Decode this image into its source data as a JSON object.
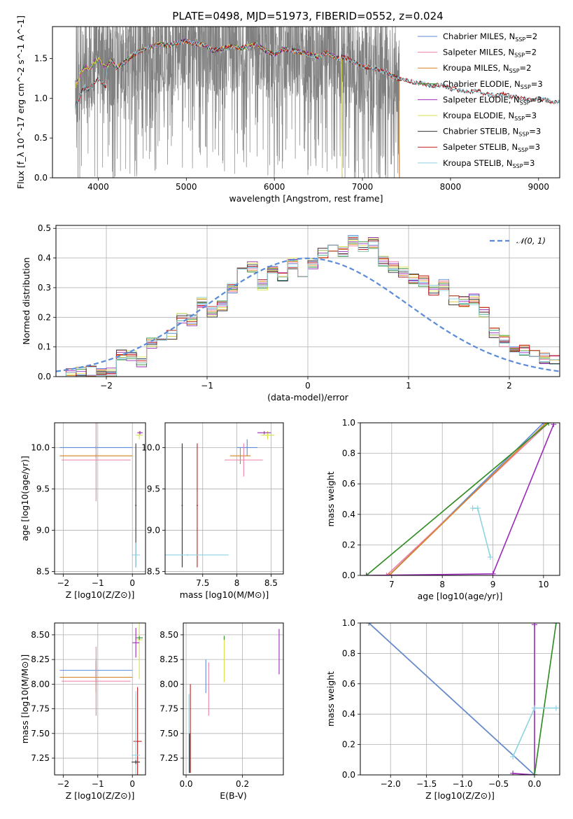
{
  "title": "PLATE=0498, MJD=51973, FIBERID=0552, z=0.024",
  "colors": {
    "Chabrier MILES": "#5b8bd9",
    "Salpeter MILES": "#ee7fa5",
    "Kroupa MILES": "#d4821e",
    "Chabrier ELODIE": "#2e8b2e",
    "Salpeter ELODIE": "#9a2ab8",
    "Kroupa ELODIE": "#d8e048",
    "Chabrier STELIB": "#333333",
    "Salpeter STELIB": "#c11b1b",
    "Kroupa STELIB": "#8fd3e0",
    "data": "#808080",
    "normal": "#5b8bd9"
  },
  "chart_data": [
    {
      "id": "spectrum",
      "type": "line",
      "title": "PLATE=0498, MJD=51973, FIBERID=0552, z=0.024",
      "xlabel": "wavelength [Angstrom, rest frame]",
      "ylabel": "Flux [f_λ 10^-17 erg cm^-2 s^-1 A^-1]",
      "xlim": [
        3480,
        9240
      ],
      "ylim": [
        0,
        1.9
      ],
      "xticks": [
        4000,
        5000,
        6000,
        7000,
        8000,
        9000
      ],
      "yticks": [
        0.0,
        0.5,
        1.0,
        1.5
      ],
      "legend_position": "top-right",
      "legend": [
        {
          "name": "Chabrier MILES",
          "sub": "SSP",
          "n": "=2"
        },
        {
          "name": "Salpeter MILES",
          "sub": "SSP",
          "n": "=2"
        },
        {
          "name": "Kroupa MILES",
          "sub": "SSP",
          "n": "=2"
        },
        {
          "name": "Chabrier ELODIE",
          "sub": "SSP",
          "n": "=3"
        },
        {
          "name": "Salpeter ELODIE",
          "sub": "SSP",
          "n": "=3"
        },
        {
          "name": "Kroupa ELODIE",
          "sub": "SSP",
          "n": "=3"
        },
        {
          "name": "Chabrier STELIB",
          "sub": "SSP",
          "n": "=3"
        },
        {
          "name": "Salpeter STELIB",
          "sub": "SSP",
          "n": "=3"
        },
        {
          "name": "Kroupa STELIB",
          "sub": "SSP",
          "n": "=3"
        }
      ],
      "data_range": [
        3740,
        7420
      ],
      "model_continuum": {
        "x": [
          3740,
          3800,
          3850,
          3900,
          3950,
          4000,
          4050,
          4100,
          4150,
          4200,
          4300,
          4400,
          4500,
          4600,
          4700,
          4800,
          4900,
          5000,
          5100,
          5200,
          5300,
          5400,
          5500,
          5600,
          5700,
          5800,
          5900,
          6000,
          6100,
          6200,
          6300,
          6400,
          6500,
          6600,
          6700,
          6800,
          6900,
          7000,
          7100,
          7200,
          7300,
          7400,
          7500,
          7600,
          7700,
          7800,
          7900,
          8000,
          8100,
          8200,
          8300,
          8400,
          8500,
          8600,
          8700,
          8800,
          8900,
          9000,
          9100,
          9200
        ],
        "y": [
          1.15,
          1.3,
          1.4,
          1.35,
          1.45,
          1.5,
          1.42,
          1.4,
          1.48,
          1.38,
          1.45,
          1.55,
          1.6,
          1.65,
          1.68,
          1.66,
          1.7,
          1.72,
          1.68,
          1.67,
          1.6,
          1.62,
          1.65,
          1.63,
          1.65,
          1.68,
          1.6,
          1.55,
          1.62,
          1.6,
          1.58,
          1.55,
          1.52,
          1.58,
          1.5,
          1.52,
          1.45,
          1.4,
          1.38,
          1.35,
          1.3,
          1.25,
          1.22,
          1.2,
          1.18,
          1.15,
          1.17,
          1.12,
          1.1,
          1.08,
          1.1,
          1.05,
          1.03,
          1.05,
          1.02,
          1.0,
          0.98,
          1.0,
          0.97,
          0.95
        ]
      },
      "cutoffs": {
        "Kroupa MILES": 7420,
        "Salpeter MILES": 7420,
        "Chabrier MILES": 7420,
        "Kroupa ELODIE": 6770,
        "Chabrier ELODIE": 6770,
        "Salpeter ELODIE": 6770
      }
    },
    {
      "id": "residuals",
      "type": "line",
      "xlabel": "(data-model)/error",
      "ylabel": "Normed distribution",
      "xlim": [
        -2.5,
        2.5
      ],
      "ylim": [
        0,
        0.51
      ],
      "xticks": [
        -2,
        -1,
        0,
        1,
        2
      ],
      "yticks": [
        0.0,
        0.1,
        0.2,
        0.3,
        0.4,
        0.5
      ],
      "legend_position": "top-right",
      "legend": [
        {
          "name": "𝒩(0, 1)"
        }
      ],
      "bin_start": -2.5,
      "bin_width": 0.1,
      "base_hist": [
        0.008,
        0.01,
        0.014,
        0.016,
        0.018,
        0.012,
        0.07,
        0.072,
        0.05,
        0.11,
        0.12,
        0.14,
        0.2,
        0.19,
        0.25,
        0.22,
        0.24,
        0.3,
        0.36,
        0.37,
        0.31,
        0.36,
        0.34,
        0.38,
        0.32,
        0.38,
        0.42,
        0.44,
        0.42,
        0.46,
        0.44,
        0.45,
        0.39,
        0.37,
        0.35,
        0.33,
        0.32,
        0.29,
        0.31,
        0.26,
        0.25,
        0.26,
        0.22,
        0.15,
        0.12,
        0.1,
        0.09,
        0.08,
        0.06,
        0.06,
        0.05,
        0.07,
        0.04,
        0.04,
        0.04,
        0.03,
        0.03,
        0.03,
        0.03,
        0.025,
        0.02,
        0.03,
        0.03,
        0.03,
        0.03,
        0.03,
        0.02,
        0.02,
        0.02,
        0.02,
        0.03,
        0.03,
        0.03,
        0.03,
        0.03
      ]
    },
    {
      "id": "age_Z",
      "type": "scatter",
      "xlabel": "Z [log10(Z/Z⊙)]",
      "ylabel": "age  [log10(age/yr)]",
      "xlim": [
        -2.25,
        0.38
      ],
      "ylim": [
        8.47,
        10.3
      ],
      "xticks": [
        -2,
        -1,
        0
      ],
      "yticks": [
        8.5,
        9.0,
        9.5,
        10.0
      ],
      "points": [
        {
          "model": "Chabrier MILES",
          "x": -1.05,
          "y": 10.0,
          "xerr": 1.05,
          "yerr": 0.02
        },
        {
          "model": "Kroupa MILES",
          "x": -1.05,
          "y": 9.9,
          "xerr": 1.05,
          "yerr": 0.02
        },
        {
          "model": "Salpeter MILES",
          "x": -1.05,
          "y": 9.85,
          "xerr": 1.0,
          "yerr": 0.5
        },
        {
          "model": "Kroupa ELODIE",
          "x": 0.2,
          "y": 10.15,
          "xerr": 0.1,
          "yerr": 0.05
        },
        {
          "model": "Salpeter ELODIE",
          "x": 0.22,
          "y": 10.18,
          "xerr": 0.08,
          "yerr": 0.02
        },
        {
          "model": "Chabrier STELIB",
          "x": 0.1,
          "y": 9.3,
          "xerr": 0.02,
          "yerr": 0.75
        },
        {
          "model": "Kroupa STELIB",
          "x": 0.1,
          "y": 8.7,
          "xerr": 0.12,
          "yerr": 0.15
        }
      ]
    },
    {
      "id": "age_mass",
      "type": "scatter",
      "xlabel": "mass [log10(M/M⊙)]",
      "ylabel": "",
      "xlim": [
        6.95,
        8.68
      ],
      "ylim": [
        8.47,
        10.3
      ],
      "xticks": [
        7.5,
        8.0,
        8.5
      ],
      "yticks": [
        8.5,
        9.0,
        9.5,
        10.0
      ],
      "points": [
        {
          "model": "Chabrier MILES",
          "x": 8.15,
          "y": 10.0,
          "xerr": 0.15,
          "yerr": 0.1
        },
        {
          "model": "Kroupa MILES",
          "x": 8.05,
          "y": 9.9,
          "xerr": 0.15,
          "yerr": 0.1
        },
        {
          "model": "Salpeter MILES",
          "x": 8.1,
          "y": 9.85,
          "xerr": 0.28,
          "yerr": 0.2
        },
        {
          "model": "Kroupa ELODIE",
          "x": 8.45,
          "y": 10.15,
          "xerr": 0.1,
          "yerr": 0.05
        },
        {
          "model": "Salpeter ELODIE",
          "x": 8.4,
          "y": 10.18,
          "xerr": 0.1,
          "yerr": 0.02
        },
        {
          "model": "Chabrier STELIB",
          "x": 7.2,
          "y": 9.3,
          "xerr": 0.01,
          "yerr": 0.75
        },
        {
          "model": "Salpeter STELIB",
          "x": 7.42,
          "y": 9.3,
          "xerr": 0.01,
          "yerr": 0.75
        },
        {
          "model": "Kroupa STELIB",
          "x": 7.28,
          "y": 8.7,
          "xerr": 0.6,
          "yerr": 0.01
        }
      ]
    },
    {
      "id": "weight_age",
      "type": "line",
      "xlabel": "age  [log10(age/yr)]",
      "ylabel": "mass weight",
      "xlim": [
        6.38,
        10.32
      ],
      "ylim": [
        0,
        1.0
      ],
      "xticks": [
        7,
        8,
        9,
        10
      ],
      "yticks": [
        0.0,
        0.2,
        0.4,
        0.6,
        0.8,
        1.0
      ],
      "lines": [
        {
          "model": "Chabrier MILES",
          "x": [
            6.95,
            10.0
          ],
          "y": [
            0.0,
            1.0
          ]
        },
        {
          "model": "Salpeter MILES",
          "x": [
            6.9,
            10.1
          ],
          "y": [
            0.0,
            1.0
          ]
        },
        {
          "model": "Kroupa MILES",
          "x": [
            6.95,
            10.05
          ],
          "y": [
            0.0,
            1.0
          ]
        },
        {
          "model": "Kroupa ELODIE",
          "x": [
            6.5,
            10.1
          ],
          "y": [
            0.0,
            1.0
          ]
        },
        {
          "model": "Chabrier ELODIE",
          "x": [
            6.5,
            10.1
          ],
          "y": [
            0.0,
            1.0
          ]
        },
        {
          "model": "Salpeter ELODIE",
          "x": [
            6.5,
            9.0,
            10.2
          ],
          "y": [
            0.0,
            0.01,
            0.99
          ]
        },
        {
          "model": "Kroupa STELIB",
          "x": [
            8.6,
            8.7,
            8.95
          ],
          "y": [
            0.44,
            0.44,
            0.12
          ]
        }
      ]
    },
    {
      "id": "mass_Z",
      "type": "scatter",
      "xlabel": "Z [log10(Z/Z⊙)]",
      "ylabel": "mass [log10(M/M⊙)]",
      "xlim": [
        -2.25,
        0.38
      ],
      "ylim": [
        7.08,
        8.62
      ],
      "xticks": [
        -2,
        -1,
        0
      ],
      "yticks": [
        7.25,
        7.5,
        7.75,
        8.0,
        8.25,
        8.5
      ],
      "points": [
        {
          "model": "Chabrier MILES",
          "x": -1.05,
          "y": 8.14,
          "xerr": 1.05,
          "yerr": 0.1
        },
        {
          "model": "Kroupa MILES",
          "x": -1.05,
          "y": 8.07,
          "xerr": 1.05,
          "yerr": 0.15
        },
        {
          "model": "Salpeter MILES",
          "x": -1.05,
          "y": 8.03,
          "xerr": 1.0,
          "yerr": 0.35
        },
        {
          "model": "Kroupa ELODIE",
          "x": 0.2,
          "y": 8.45,
          "xerr": 0.1,
          "yerr": 0.4
        },
        {
          "model": "Chabrier ELODIE",
          "x": 0.2,
          "y": 8.47,
          "xerr": 0.1,
          "yerr": 0.02
        },
        {
          "model": "Salpeter ELODIE",
          "x": 0.1,
          "y": 8.42,
          "xerr": 0.1,
          "yerr": 0.15
        },
        {
          "model": "Salpeter STELIB",
          "x": 0.15,
          "y": 7.42,
          "xerr": 0.12,
          "yerr": 0.55
        },
        {
          "model": "Kroupa STELIB",
          "x": 0.1,
          "y": 7.28,
          "xerr": 0.12,
          "yerr": 0.65
        },
        {
          "model": "Chabrier STELIB",
          "x": 0.1,
          "y": 7.21,
          "xerr": 0.12,
          "yerr": 0.02
        }
      ]
    },
    {
      "id": "mass_ebv",
      "type": "scatter",
      "xlabel": "E(B-V)",
      "ylabel": "",
      "xlim": [
        -0.01,
        0.345
      ],
      "ylim": [
        7.08,
        8.62
      ],
      "xticks": [
        0.0,
        0.2
      ],
      "xtick_labels": [
        "0.0",
        "0.2"
      ],
      "yticks": [
        7.25,
        7.5,
        7.75,
        8.0,
        8.25,
        8.5
      ],
      "points": [
        {
          "model": "Chabrier MILES",
          "x": 0.07,
          "y": 8.08,
          "xerr": 0,
          "yerr": 0.17
        },
        {
          "model": "Salpeter MILES",
          "x": 0.08,
          "y": 7.95,
          "xerr": 0,
          "yerr": 0.27
        },
        {
          "model": "Kroupa ELODIE",
          "x": 0.135,
          "y": 8.25,
          "xerr": 0,
          "yerr": 0.23
        },
        {
          "model": "Chabrier ELODIE",
          "x": 0.135,
          "y": 8.47,
          "xerr": 0,
          "yerr": 0.02
        },
        {
          "model": "Salpeter ELODIE",
          "x": 0.33,
          "y": 8.33,
          "xerr": 0,
          "yerr": 0.23
        },
        {
          "model": "Salpeter STELIB",
          "x": 0.015,
          "y": 7.55,
          "xerr": 0,
          "yerr": 0.45
        },
        {
          "model": "Kroupa STELIB",
          "x": 0.01,
          "y": 7.5,
          "xerr": 0,
          "yerr": 0.4
        },
        {
          "model": "Chabrier STELIB",
          "x": 0.012,
          "y": 7.3,
          "xerr": 0,
          "yerr": 0.2
        }
      ]
    },
    {
      "id": "weight_Z",
      "type": "line",
      "xlabel": "Z [log10(Z/Z⊙)]",
      "ylabel": "mass weight",
      "xlim": [
        -2.42,
        0.35
      ],
      "ylim": [
        0,
        1.0
      ],
      "xticks": [
        -2.0,
        -1.5,
        -1.0,
        -0.5,
        0.0
      ],
      "xtick_labels": [
        "−2.0",
        "−1.5",
        "−1.0",
        "−0.5",
        "0.0"
      ],
      "yticks": [
        0.0,
        0.2,
        0.4,
        0.6,
        0.8,
        1.0
      ],
      "lines": [
        {
          "model": "Kroupa MILES",
          "x": [
            -2.3,
            0.0
          ],
          "y": [
            1.0,
            0.0
          ]
        },
        {
          "model": "Chabrier MILES",
          "x": [
            -2.3,
            0.0
          ],
          "y": [
            1.0,
            0.0
          ]
        },
        {
          "model": "Salpeter ELODIE",
          "x": [
            -0.3,
            0.0,
            0.0
          ],
          "y": [
            0.01,
            0.0,
            0.99
          ]
        },
        {
          "model": "Kroupa ELODIE",
          "x": [
            0.0,
            0.3
          ],
          "y": [
            0.0,
            1.0
          ]
        },
        {
          "model": "Chabrier ELODIE",
          "x": [
            0.0,
            0.3
          ],
          "y": [
            0.0,
            1.0
          ]
        },
        {
          "model": "Kroupa STELIB",
          "x": [
            -0.3,
            0.0,
            0.3
          ],
          "y": [
            0.12,
            0.44,
            0.44
          ]
        }
      ]
    }
  ]
}
